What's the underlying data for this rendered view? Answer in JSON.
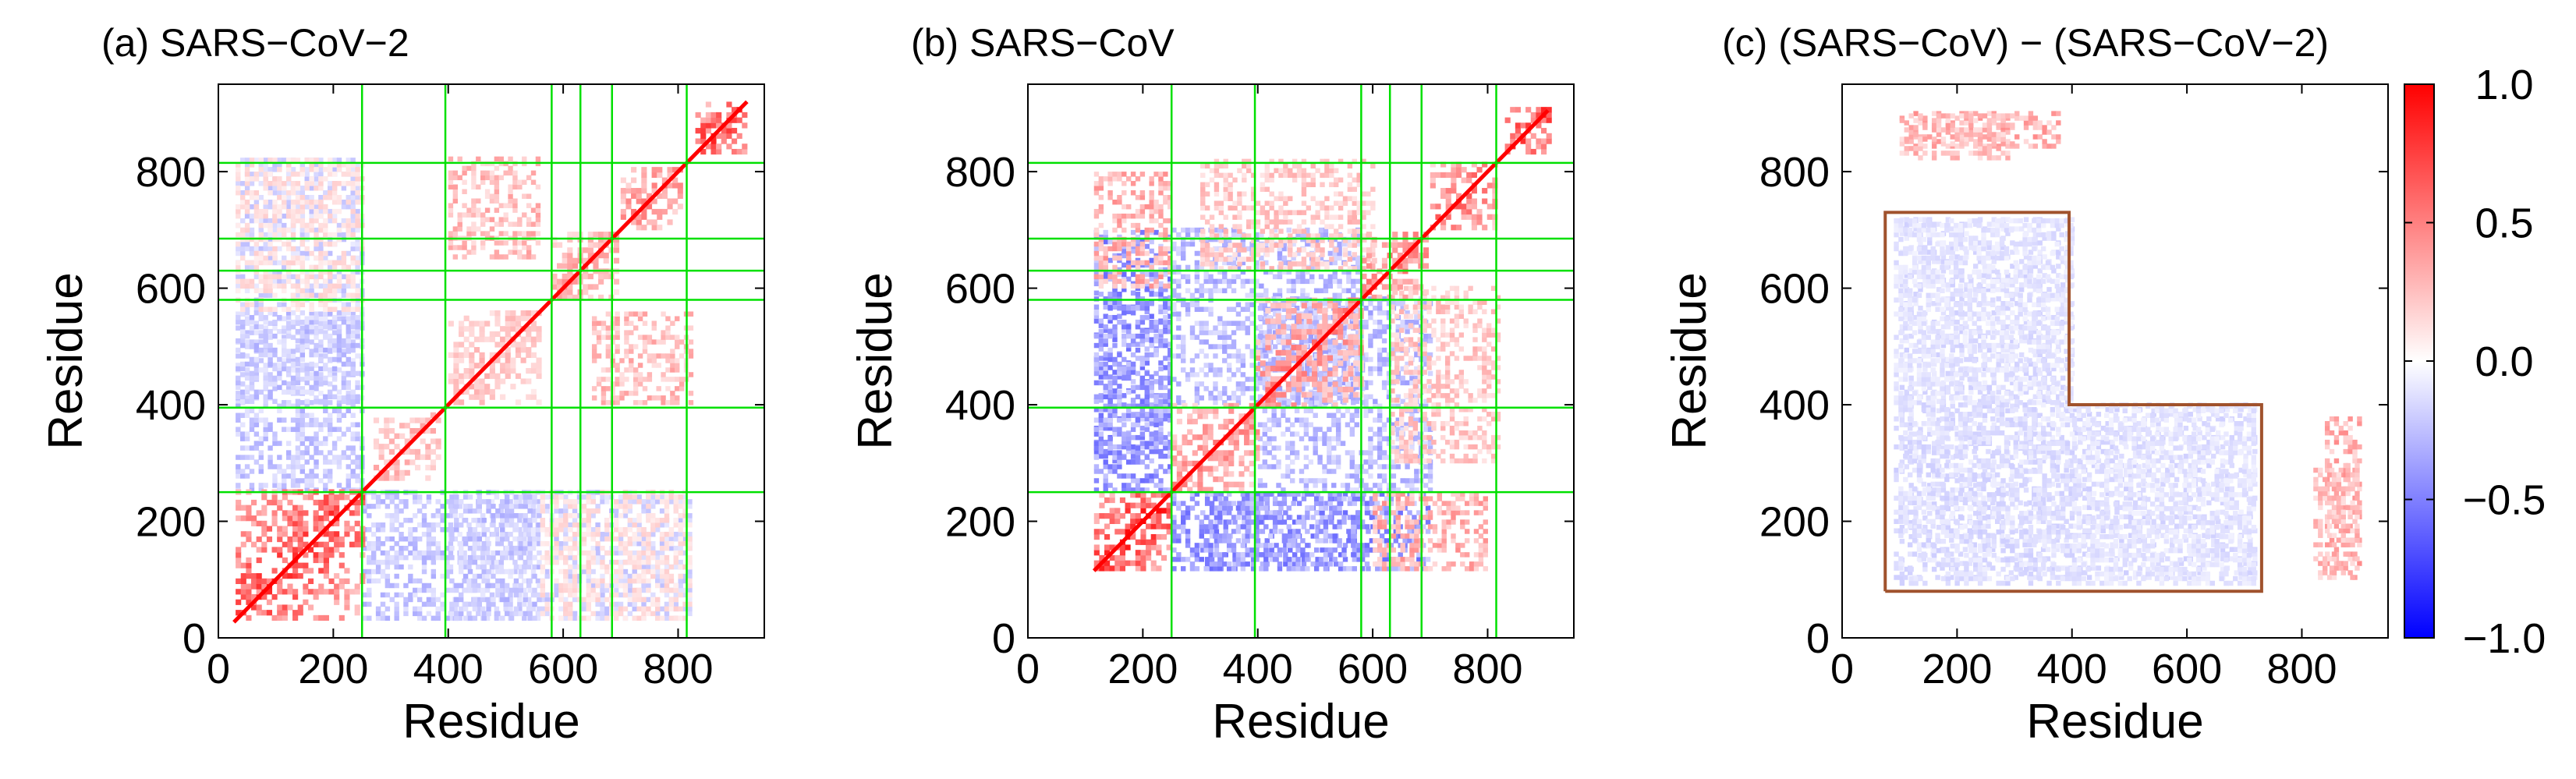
{
  "colors": {
    "positive": "#ff0000",
    "negative": "#0000ff",
    "zero": "#ffffff",
    "domain_lines": "#00e000",
    "region_outline": "#a0522d",
    "frame": "#000000"
  },
  "chart_data": [
    {
      "type": "heatmap",
      "title": "(a) SARS−CoV−2",
      "xlabel": "Residue",
      "ylabel": "Residue",
      "xlim": [
        0,
        950
      ],
      "ylim": [
        0,
        950
      ],
      "xticks": [
        0,
        200,
        400,
        600,
        800
      ],
      "yticks": [
        0,
        200,
        400,
        600,
        800
      ],
      "xtick_labels": [
        "0",
        "200",
        "400",
        "600",
        "800"
      ],
      "ytick_labels": [
        "0",
        "200",
        "400",
        "600",
        "800"
      ],
      "residue_range": [
        27,
        920
      ],
      "domain_boundaries": [
        250,
        395,
        580,
        630,
        685,
        815
      ],
      "diagonal_blocks": [
        {
          "start": 30,
          "end": 250,
          "value": 0.75
        },
        {
          "start": 270,
          "end": 380,
          "value": 0.35
        },
        {
          "start": 400,
          "end": 560,
          "value": 0.3
        },
        {
          "start": 580,
          "end": 690,
          "value": 0.4
        },
        {
          "start": 700,
          "end": 800,
          "value": 0.5
        },
        {
          "start": 830,
          "end": 920,
          "value": 0.8
        }
      ],
      "background_patterns": [
        {
          "x": [
            30,
            250
          ],
          "y": [
            400,
            820
          ],
          "value": -0.2
        },
        {
          "x": [
            250,
            560
          ],
          "y": [
            30,
            250
          ],
          "value": -0.25
        },
        {
          "x": [
            560,
            820
          ],
          "y": [
            30,
            250
          ],
          "value": 0.15
        },
        {
          "x": [
            650,
            820
          ],
          "y": [
            400,
            560
          ],
          "value": 0.3
        }
      ]
    },
    {
      "type": "heatmap",
      "title": "(b) SARS−CoV",
      "xlabel": "Residue",
      "ylabel": "Residue",
      "xlim": [
        0,
        950
      ],
      "ylim": [
        0,
        950
      ],
      "xticks": [
        0,
        200,
        400,
        600,
        800
      ],
      "yticks": [
        0,
        200,
        400,
        600,
        800
      ],
      "xtick_labels": [
        "0",
        "200",
        "400",
        "600",
        "800"
      ],
      "ytick_labels": [
        "0",
        "200",
        "400",
        "600",
        "800"
      ],
      "residue_range": [
        115,
        905
      ],
      "domain_boundaries": [
        250,
        395,
        580,
        630,
        685,
        815
      ],
      "diagonal_blocks": [
        {
          "start": 115,
          "end": 250,
          "value": 0.85
        },
        {
          "start": 250,
          "end": 395,
          "value": 0.5
        },
        {
          "start": 395,
          "end": 580,
          "value": 0.5
        },
        {
          "start": 580,
          "end": 690,
          "value": 0.55
        },
        {
          "start": 700,
          "end": 815,
          "value": 0.6
        },
        {
          "start": 830,
          "end": 905,
          "value": 0.85
        }
      ],
      "background_patterns": [
        {
          "x": [
            115,
            250
          ],
          "y": [
            300,
            700
          ],
          "value": -0.45
        },
        {
          "x": [
            250,
            600
          ],
          "y": [
            115,
            250
          ],
          "value": -0.45
        },
        {
          "x": [
            600,
            800
          ],
          "y": [
            115,
            250
          ],
          "value": 0.35
        },
        {
          "x": [
            250,
            580
          ],
          "y": [
            400,
            700
          ],
          "value": -0.3
        },
        {
          "x": [
            630,
            815
          ],
          "y": [
            300,
            600
          ],
          "value": 0.25
        }
      ]
    },
    {
      "type": "heatmap",
      "title": "(c) (SARS−CoV) − (SARS−CoV−2)",
      "xlabel": "Residue",
      "ylabel": "Residue",
      "xlim": [
        0,
        950
      ],
      "ylim": [
        0,
        950
      ],
      "xticks": [
        0,
        200,
        400,
        600,
        800
      ],
      "yticks": [
        0,
        200,
        400,
        600,
        800
      ],
      "xtick_labels": [
        "0",
        "200",
        "400",
        "600",
        "800"
      ],
      "ytick_labels": [
        "0",
        "200",
        "400",
        "600",
        "800"
      ],
      "residue_range": [
        115,
        920
      ],
      "highlighted_region": [
        [
          75,
          80
        ],
        [
          75,
          730
        ],
        [
          395,
          730
        ],
        [
          395,
          400
        ],
        [
          730,
          400
        ],
        [
          730,
          80
        ],
        [
          75,
          80
        ]
      ],
      "background_patterns": [
        {
          "x": [
            100,
            400
          ],
          "y": [
            90,
            720
          ],
          "value": -0.15
        },
        {
          "x": [
            400,
            720
          ],
          "y": [
            90,
            400
          ],
          "value": -0.12
        },
        {
          "x": [
            100,
            380
          ],
          "y": [
            840,
            900
          ],
          "value": 0.35
        },
        {
          "x": [
            820,
            900
          ],
          "y": [
            100,
            300
          ],
          "value": 0.3
        }
      ],
      "colorbar": {
        "min": -1.0,
        "max": 1.0,
        "ticks": [
          1.0,
          0.5,
          0.0,
          -0.5,
          -1.0
        ],
        "tick_labels": [
          "1.0",
          "0.5",
          "0.0",
          "−0.5",
          "−1.0"
        ]
      }
    }
  ]
}
